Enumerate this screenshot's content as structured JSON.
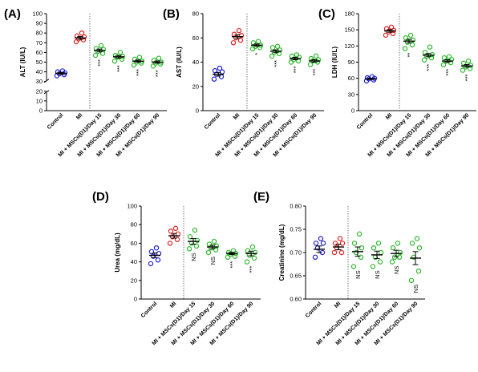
{
  "chart_data": [
    {
      "panel": "(A)",
      "type": "scatter",
      "ylabel": "ALT (IU/L)",
      "ylim": [
        0,
        100
      ],
      "axis_break": [
        20,
        30
      ],
      "yticks": [
        0,
        10,
        20,
        30,
        40,
        50,
        60,
        70,
        80,
        90,
        100
      ],
      "categories": [
        "Control",
        "MI",
        "MI + MSCs(D1)/Day 15",
        "MI + MSCs(D1)/Day 30",
        "MI + MSCs(D1)/Day 60",
        "MI + MSCs(D1)/Day 90"
      ],
      "colors": [
        "#1f1fd0",
        "#e02020",
        "#2db82d",
        "#2db82d",
        "#2db82d",
        "#2db82d"
      ],
      "series": [
        {
          "points": [
            36,
            37,
            38,
            39,
            40,
            41
          ],
          "mean": 38.5,
          "sem": 1.0
        },
        {
          "points": [
            71,
            73,
            74,
            76,
            77,
            80
          ],
          "mean": 75,
          "sem": 1.5
        },
        {
          "points": [
            57,
            59,
            61,
            63,
            64,
            67
          ],
          "mean": 62,
          "sem": 1.5
        },
        {
          "points": [
            51,
            53,
            55,
            56,
            57,
            60
          ],
          "mean": 55.5,
          "sem": 1.4
        },
        {
          "points": [
            47,
            49,
            50,
            51,
            53,
            55
          ],
          "mean": 51,
          "sem": 1.2
        },
        {
          "points": [
            46,
            48,
            49,
            50,
            52,
            54
          ],
          "mean": 50,
          "sem": 1.2
        }
      ],
      "significance": [
        "",
        "",
        "***",
        "***",
        "***",
        "***"
      ]
    },
    {
      "panel": "(B)",
      "type": "scatter",
      "ylabel": "AST (IU/L)",
      "ylim": [
        0,
        80
      ],
      "yticks": [
        0,
        20,
        40,
        60,
        80
      ],
      "categories": [
        "Control",
        "MI",
        "MI + MSCs(D1)/Day 15",
        "MI + MSCs(D1)/Day 30",
        "MI + MSCs(D1)/Day 60",
        "MI + MSCs(D1)/Day 90"
      ],
      "colors": [
        "#1f1fd0",
        "#e02020",
        "#2db82d",
        "#2db82d",
        "#2db82d",
        "#2db82d"
      ],
      "series": [
        {
          "points": [
            26,
            28,
            30,
            32,
            33,
            35
          ],
          "mean": 30,
          "sem": 1.5
        },
        {
          "points": [
            56,
            58,
            60,
            62,
            63,
            66
          ],
          "mean": 61,
          "sem": 1.5
        },
        {
          "points": [
            51,
            52,
            53,
            54,
            56,
            57
          ],
          "mean": 54,
          "sem": 1.0
        },
        {
          "points": [
            45,
            47,
            48,
            50,
            52,
            53
          ],
          "mean": 49,
          "sem": 1.2
        },
        {
          "points": [
            40,
            41,
            42,
            44,
            45,
            46
          ],
          "mean": 43,
          "sem": 1.0
        },
        {
          "points": [
            38,
            40,
            41,
            42,
            43,
            45
          ],
          "mean": 41,
          "sem": 1.0
        }
      ],
      "significance": [
        "",
        "",
        "*",
        "***",
        "***",
        "***"
      ]
    },
    {
      "panel": "(C)",
      "type": "scatter",
      "ylabel": "LDH (IU/L)",
      "ylim": [
        0,
        180
      ],
      "yticks": [
        0,
        30,
        60,
        90,
        120,
        150,
        180
      ],
      "categories": [
        "Control",
        "MI",
        "MI + MSCs(D1)/Day 15",
        "MI + MSCs(D1)/Day 30",
        "MI + MSCs(D1)/Day 60",
        "MI + MSCs(D1)/Day 90"
      ],
      "colors": [
        "#1f1fd0",
        "#e02020",
        "#2db82d",
        "#2db82d",
        "#2db82d",
        "#2db82d"
      ],
      "series": [
        {
          "points": [
            55,
            57,
            59,
            60,
            61,
            63
          ],
          "mean": 59,
          "sem": 1.2
        },
        {
          "points": [
            140,
            143,
            146,
            149,
            152,
            155
          ],
          "mean": 148,
          "sem": 2.5
        },
        {
          "points": [
            115,
            122,
            127,
            131,
            135,
            140
          ],
          "mean": 129,
          "sem": 3.5
        },
        {
          "points": [
            94,
            98,
            101,
            104,
            108,
            118
          ],
          "mean": 103,
          "sem": 3.0
        },
        {
          "points": [
            85,
            89,
            92,
            95,
            98,
            100
          ],
          "mean": 92,
          "sem": 2.5
        },
        {
          "points": [
            75,
            78,
            81,
            84,
            88,
            92
          ],
          "mean": 83,
          "sem": 2.5
        }
      ],
      "significance": [
        "",
        "",
        "**",
        "***",
        "***",
        "***"
      ]
    },
    {
      "panel": "(D)",
      "type": "scatter",
      "ylabel": "Urea (mg/dL)",
      "ylim": [
        0,
        100
      ],
      "yticks": [
        0,
        20,
        40,
        60,
        80,
        100
      ],
      "categories": [
        "Control",
        "MI",
        "MI + MSCs(D1)/Day 15",
        "MI + MSCs(D1)/Day 30",
        "MI + MSCs(D1)/Day 60",
        "MI + MSCs(D1)/Day 90"
      ],
      "colors": [
        "#1f1fd0",
        "#e02020",
        "#2db82d",
        "#2db82d",
        "#2db82d",
        "#2db82d"
      ],
      "series": [
        {
          "points": [
            38,
            42,
            46,
            49,
            51,
            55
          ],
          "mean": 47,
          "sem": 2.5
        },
        {
          "points": [
            60,
            64,
            67,
            70,
            73,
            76
          ],
          "mean": 68,
          "sem": 2.5
        },
        {
          "points": [
            54,
            57,
            60,
            63,
            67,
            74
          ],
          "mean": 62,
          "sem": 3.0
        },
        {
          "points": [
            50,
            53,
            55,
            57,
            59,
            62
          ],
          "mean": 56,
          "sem": 2.0
        },
        {
          "points": [
            45,
            46,
            48,
            49,
            50,
            52
          ],
          "mean": 49,
          "sem": 1.2
        },
        {
          "points": [
            40,
            44,
            47,
            50,
            52,
            56
          ],
          "mean": 49,
          "sem": 2.5
        }
      ],
      "significance": [
        "",
        "",
        "NS",
        "NS",
        "***",
        "***"
      ]
    },
    {
      "panel": "(E)",
      "type": "scatter",
      "ylabel": "Creatinine (mg/dL)",
      "ylim": [
        0.6,
        0.8
      ],
      "yticks": [
        0.6,
        0.65,
        0.7,
        0.75,
        0.8
      ],
      "ytick_labels": [
        "0.60",
        "0.65",
        "0.70",
        "0.75",
        "0.80"
      ],
      "categories": [
        "Control",
        "MI",
        "MI + MSCs(D1)/Day 15",
        "MI + MSCs(D1)/Day 30",
        "MI + MSCs(D1)/Day 60",
        "MI + MSCs(D1)/Day 90"
      ],
      "colors": [
        "#1f1fd0",
        "#e02020",
        "#2db82d",
        "#2db82d",
        "#2db82d",
        "#2db82d"
      ],
      "series": [
        {
          "points": [
            0.69,
            0.7,
            0.71,
            0.72,
            0.72,
            0.73
          ],
          "mean": 0.707,
          "sem": 0.007
        },
        {
          "points": [
            0.7,
            0.7,
            0.71,
            0.72,
            0.72,
            0.73
          ],
          "mean": 0.712,
          "sem": 0.006
        },
        {
          "points": [
            0.67,
            0.69,
            0.7,
            0.71,
            0.72,
            0.74
          ],
          "mean": 0.702,
          "sem": 0.01
        },
        {
          "points": [
            0.67,
            0.68,
            0.69,
            0.7,
            0.71,
            0.72
          ],
          "mean": 0.695,
          "sem": 0.008
        },
        {
          "points": [
            0.68,
            0.69,
            0.69,
            0.7,
            0.71,
            0.72
          ],
          "mean": 0.698,
          "sem": 0.007
        },
        {
          "points": [
            0.64,
            0.66,
            0.69,
            0.71,
            0.72,
            0.73
          ],
          "mean": 0.688,
          "sem": 0.014
        }
      ],
      "significance": [
        "",
        "",
        "NS",
        "NS",
        "NS",
        "NS"
      ]
    }
  ]
}
